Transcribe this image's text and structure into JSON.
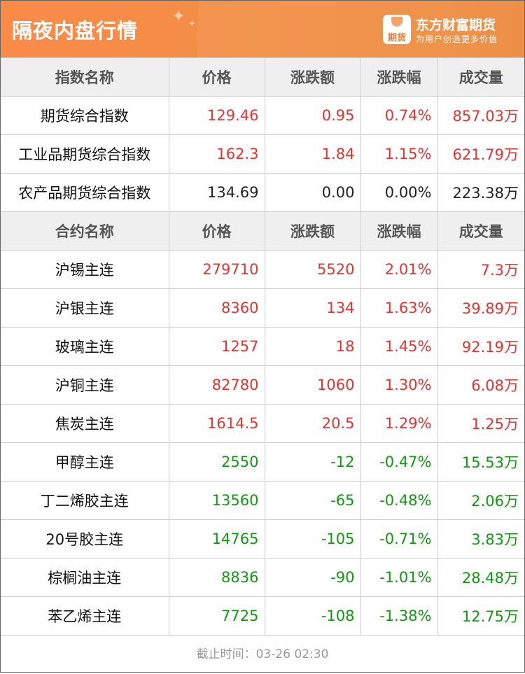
{
  "header": {
    "title": "隔夜内盘行情",
    "logo_text": "期货",
    "brand": "东方财富期货",
    "slogan": "为用户创造更多价值"
  },
  "colors": {
    "up": "#e8322f",
    "down": "#119a11",
    "flat": "#222222",
    "header_bg": "#f28f45"
  },
  "index_table": {
    "headers": [
      "指数名称",
      "价格",
      "涨跌额",
      "涨跌幅",
      "成交量"
    ],
    "rows": [
      {
        "name": "期货综合指数",
        "price": "129.46",
        "change": "0.95",
        "pct": "0.74%",
        "volume": "857.03万",
        "trend": "up"
      },
      {
        "name": "工业品期货综合指数",
        "price": "162.3",
        "change": "1.84",
        "pct": "1.15%",
        "volume": "621.79万",
        "trend": "up"
      },
      {
        "name": "农产品期货综合指数",
        "price": "134.69",
        "change": "0.00",
        "pct": "0.00%",
        "volume": "223.38万",
        "trend": "flat"
      }
    ]
  },
  "contract_table": {
    "headers": [
      "合约名称",
      "价格",
      "涨跌额",
      "涨跌幅",
      "成交量"
    ],
    "rows": [
      {
        "name": "沪锡主连",
        "price": "279710",
        "change": "5520",
        "pct": "2.01%",
        "volume": "7.3万",
        "trend": "up"
      },
      {
        "name": "沪银主连",
        "price": "8360",
        "change": "134",
        "pct": "1.63%",
        "volume": "39.89万",
        "trend": "up"
      },
      {
        "name": "玻璃主连",
        "price": "1257",
        "change": "18",
        "pct": "1.45%",
        "volume": "92.19万",
        "trend": "up"
      },
      {
        "name": "沪铜主连",
        "price": "82780",
        "change": "1060",
        "pct": "1.30%",
        "volume": "6.08万",
        "trend": "up"
      },
      {
        "name": "焦炭主连",
        "price": "1614.5",
        "change": "20.5",
        "pct": "1.29%",
        "volume": "1.25万",
        "trend": "up"
      },
      {
        "name": "甲醇主连",
        "price": "2550",
        "change": "-12",
        "pct": "-0.47%",
        "volume": "15.53万",
        "trend": "down"
      },
      {
        "name": "丁二烯胶主连",
        "price": "13560",
        "change": "-65",
        "pct": "-0.48%",
        "volume": "2.06万",
        "trend": "down"
      },
      {
        "name": "20号胶主连",
        "price": "14765",
        "change": "-105",
        "pct": "-0.71%",
        "volume": "3.83万",
        "trend": "down"
      },
      {
        "name": "棕榈油主连",
        "price": "8836",
        "change": "-90",
        "pct": "-1.01%",
        "volume": "28.48万",
        "trend": "down"
      },
      {
        "name": "苯乙烯主连",
        "price": "7725",
        "change": "-108",
        "pct": "-1.38%",
        "volume": "12.75万",
        "trend": "down"
      }
    ]
  },
  "footer": {
    "deadline": "截止时间：03-26 02:30"
  }
}
